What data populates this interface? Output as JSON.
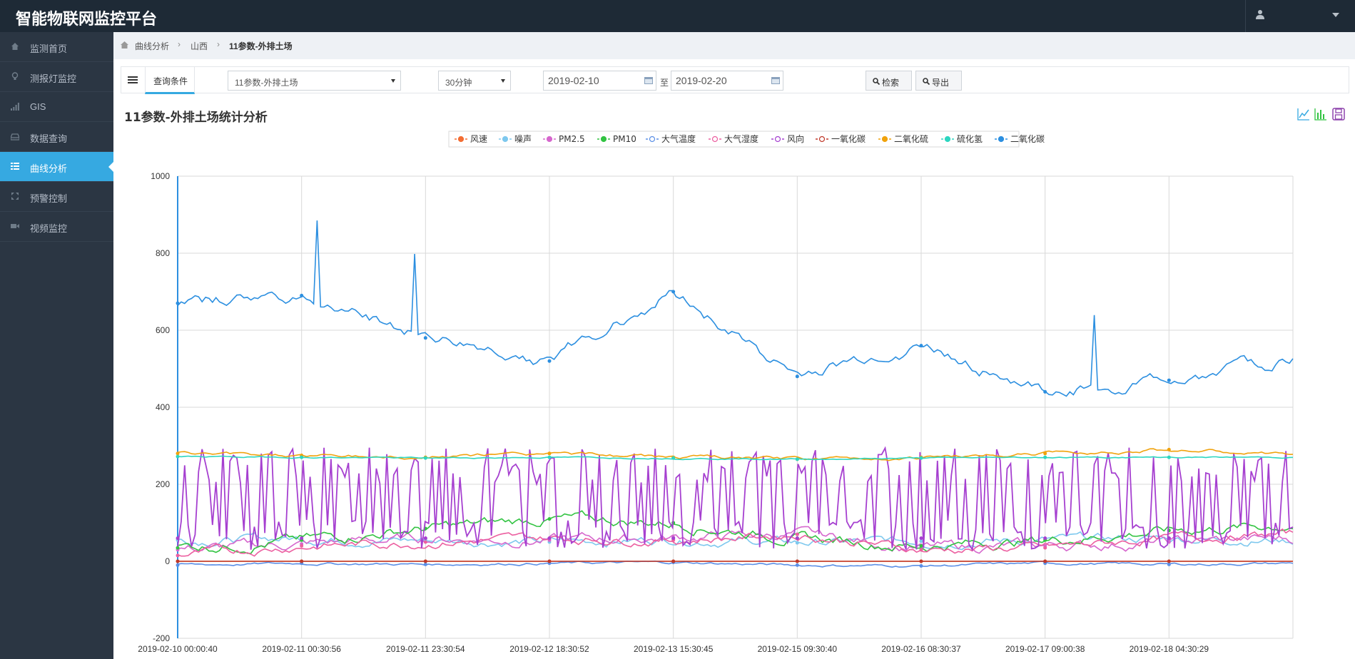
{
  "app": {
    "title": "智能物联网监控平台"
  },
  "sidebar": {
    "items": [
      {
        "label": "监测首页",
        "icon": "home-icon"
      },
      {
        "label": "测报灯监控",
        "icon": "bulb-icon"
      },
      {
        "label": "GIS",
        "icon": "signal-icon"
      },
      {
        "label": "数据查询",
        "icon": "drive-icon"
      },
      {
        "label": "曲线分析",
        "icon": "grid-icon",
        "active": true
      },
      {
        "label": "预警控制",
        "icon": "expand-icon"
      },
      {
        "label": "视频监控",
        "icon": "video-icon"
      }
    ]
  },
  "breadcrumb": {
    "items": [
      "曲线分析",
      "山西",
      "11参数-外排土场"
    ]
  },
  "toolbar": {
    "tab_label": "查询条件",
    "device_select": "11参数-外排土场",
    "interval_select": "30分钟",
    "date_from": "2019-02-10",
    "to_label": "至",
    "date_to": "2019-02-20",
    "search_label": "检索",
    "export_label": "导出"
  },
  "chart_data": {
    "type": "line",
    "title": "11参数-外排土场统计分析",
    "ylim": [
      -200,
      1000
    ],
    "yticks": [
      "1000",
      "800",
      "600",
      "400",
      "200",
      "0",
      "-200"
    ],
    "xlabels": [
      "2019-02-10 00:00:40",
      "2019-02-11 00:30:56",
      "2019-02-11 23:30:54",
      "2019-02-12 18:30:52",
      "2019-02-13 15:30:45",
      "2019-02-15 09:30:40",
      "2019-02-16 08:30:37",
      "2019-02-17 09:00:38",
      "2019-02-18 04:30:29"
    ],
    "legend_position": "top-center",
    "grid": true,
    "series": [
      {
        "name": "风速",
        "color": "#f36d33",
        "marker": "circle",
        "values": [
          0,
          0,
          0,
          0,
          0,
          0,
          0,
          0,
          0,
          0
        ]
      },
      {
        "name": "噪声",
        "color": "#7ec8ee",
        "marker": "square",
        "values": [
          55,
          60,
          55,
          50,
          58,
          48,
          52,
          55,
          60,
          55
        ]
      },
      {
        "name": "PM2.5",
        "color": "#d667cd",
        "marker": "triangle",
        "values": [
          30,
          45,
          60,
          55,
          62,
          70,
          35,
          40,
          50,
          60
        ]
      },
      {
        "name": "PM10",
        "color": "#32c342",
        "marker": "circle",
        "values": [
          35,
          55,
          85,
          110,
          100,
          60,
          40,
          55,
          80,
          95
        ]
      },
      {
        "name": "大气温度",
        "color": "#5b8fe6",
        "marker": "circle-open",
        "values": [
          -10,
          -5,
          -8,
          -5,
          -3,
          -10,
          -12,
          -5,
          -8,
          -5
        ]
      },
      {
        "name": "大气湿度",
        "color": "#ec5fa0",
        "marker": "square-open",
        "values": [
          15,
          40,
          50,
          60,
          55,
          70,
          30,
          35,
          60,
          70
        ]
      },
      {
        "name": "风向",
        "color": "#a640d0",
        "marker": "triangle-open",
        "values": [
          150,
          250,
          60,
          220,
          100,
          290,
          50,
          200,
          90,
          240
        ]
      },
      {
        "name": "一氧化碳",
        "color": "#c0392b",
        "marker": "diamond-open",
        "values": [
          0,
          0,
          0,
          0,
          0,
          0,
          0,
          0,
          0,
          0
        ]
      },
      {
        "name": "二氧化硫",
        "color": "#f0a20c",
        "marker": "circle",
        "values": [
          280,
          275,
          270,
          280,
          270,
          265,
          270,
          280,
          290,
          275
        ]
      },
      {
        "name": "硫化氢",
        "color": "#2dd6c0",
        "marker": "square",
        "values": [
          272,
          270,
          268,
          270,
          268,
          265,
          268,
          270,
          270,
          270
        ]
      },
      {
        "name": "二氧化碳",
        "color": "#2c8fe0",
        "marker": "triangle",
        "values": [
          670,
          690,
          580,
          520,
          700,
          480,
          560,
          440,
          470,
          520
        ]
      }
    ]
  }
}
